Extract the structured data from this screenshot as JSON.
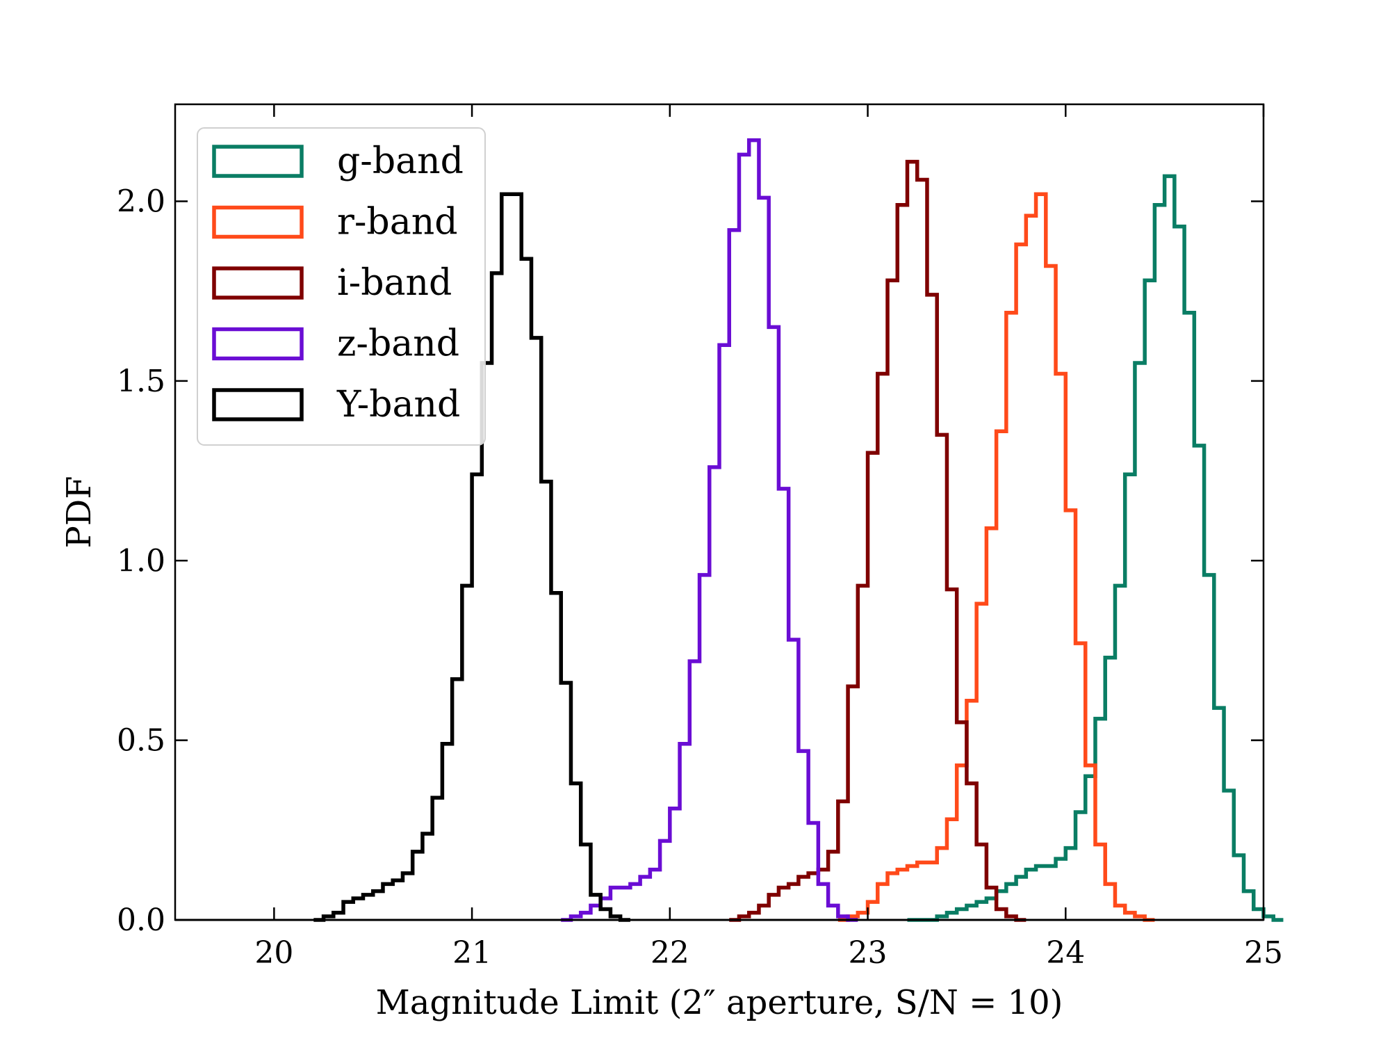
{
  "chart_data": {
    "type": "histogram",
    "title": "",
    "xlabel": "Magnitude Limit (2″ aperture, S/N = 10)",
    "ylabel": "PDF",
    "xlim": [
      19.5,
      25.0
    ],
    "ylim": [
      0.0,
      2.27
    ],
    "xticks": [
      20,
      21,
      22,
      23,
      24,
      25
    ],
    "xtick_labels": [
      "20",
      "21",
      "22",
      "23",
      "24",
      "25"
    ],
    "yticks": [
      0.0,
      0.5,
      1.0,
      1.5,
      2.0
    ],
    "ytick_labels": [
      "0.0",
      "0.5",
      "1.0",
      "1.5",
      "2.0"
    ],
    "grid": false,
    "legend_position": "top-left",
    "bin_width": 0.05,
    "series": [
      {
        "name": "g-band",
        "color": "#0a7d64",
        "x_start": 23.2,
        "values": [
          0.0,
          0.0,
          0.0,
          0.01,
          0.02,
          0.03,
          0.04,
          0.05,
          0.06,
          0.08,
          0.1,
          0.12,
          0.14,
          0.15,
          0.15,
          0.17,
          0.2,
          0.3,
          0.4,
          0.56,
          0.73,
          0.93,
          1.24,
          1.55,
          1.78,
          1.99,
          2.07,
          1.93,
          1.69,
          1.32,
          0.96,
          0.59,
          0.36,
          0.18,
          0.08,
          0.03,
          0.01,
          0.0
        ]
      },
      {
        "name": "r-band",
        "color": "#ff4a1a",
        "x_start": 22.85,
        "values": [
          0.0,
          0.01,
          0.02,
          0.05,
          0.1,
          0.13,
          0.14,
          0.15,
          0.16,
          0.16,
          0.2,
          0.28,
          0.43,
          0.61,
          0.88,
          1.09,
          1.36,
          1.69,
          1.88,
          1.96,
          2.02,
          1.82,
          1.52,
          1.14,
          0.77,
          0.43,
          0.21,
          0.1,
          0.04,
          0.02,
          0.01,
          0.0
        ]
      },
      {
        "name": "i-band",
        "color": "#7f0000",
        "x_start": 22.3,
        "values": [
          0.0,
          0.01,
          0.02,
          0.04,
          0.07,
          0.09,
          0.1,
          0.12,
          0.13,
          0.14,
          0.19,
          0.33,
          0.65,
          0.93,
          1.3,
          1.52,
          1.78,
          1.99,
          2.11,
          2.06,
          1.74,
          1.35,
          0.92,
          0.55,
          0.38,
          0.21,
          0.09,
          0.03,
          0.01,
          0.0
        ]
      },
      {
        "name": "z-band",
        "color": "#6a0dd4",
        "x_start": 21.45,
        "values": [
          0.0,
          0.01,
          0.02,
          0.04,
          0.06,
          0.09,
          0.09,
          0.1,
          0.12,
          0.14,
          0.22,
          0.31,
          0.49,
          0.72,
          0.96,
          1.26,
          1.6,
          1.92,
          2.13,
          2.17,
          2.01,
          1.65,
          1.2,
          0.78,
          0.47,
          0.27,
          0.1,
          0.04,
          0.01,
          0.0
        ]
      },
      {
        "name": "Y-band",
        "color": "#000000",
        "x_start": 20.2,
        "values": [
          0.0,
          0.01,
          0.02,
          0.05,
          0.06,
          0.07,
          0.08,
          0.1,
          0.11,
          0.13,
          0.19,
          0.24,
          0.34,
          0.49,
          0.67,
          0.93,
          1.24,
          1.55,
          1.8,
          2.02,
          2.02,
          1.84,
          1.62,
          1.22,
          0.91,
          0.66,
          0.38,
          0.21,
          0.07,
          0.03,
          0.01,
          0.0
        ]
      }
    ]
  }
}
